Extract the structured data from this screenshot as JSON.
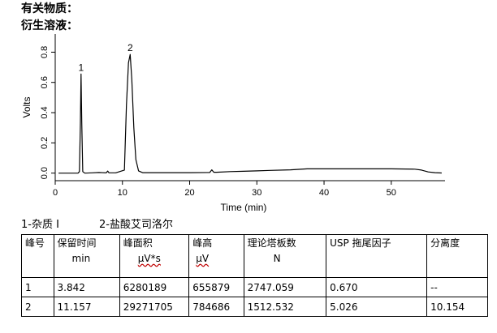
{
  "header": {
    "line1": "有关物质：",
    "line2": "衍生溶液："
  },
  "chart_data": {
    "type": "line",
    "title": "",
    "xlabel": "Time (min)",
    "ylabel": "Volts",
    "xlim": [
      0,
      58
    ],
    "ylim": [
      -0.05,
      0.92
    ],
    "xticks": [
      0,
      10,
      20,
      30,
      40,
      50
    ],
    "yticks": [
      0.0,
      0.2,
      0.4,
      0.6,
      0.8
    ],
    "xtick_labels": [
      "0",
      "10",
      "20",
      "30",
      "40",
      "50"
    ],
    "ytick_labels": [
      "0.0",
      "0.2",
      "0.4",
      "0.6",
      "0.8"
    ],
    "grid": false,
    "line_color": "#000000",
    "series": [
      {
        "x": [
          0.5,
          2.0,
          3.4,
          3.6,
          3.75,
          3.842,
          3.95,
          4.1,
          4.4,
          5.5,
          6.5,
          7.6,
          7.8,
          8.0,
          9.0,
          10.3,
          10.6,
          10.9,
          11.157,
          11.4,
          11.7,
          12.0,
          12.4,
          13.0,
          15.0,
          20.0,
          23.0,
          23.3,
          23.6,
          24.0,
          26.0,
          28.0,
          30.0,
          32.0,
          35.0,
          37.5,
          40.0,
          45.0,
          50.0,
          53.5,
          54.5,
          55.5,
          56.5,
          57.5
        ],
        "y": [
          0.0,
          0.0,
          0.0,
          0.01,
          0.33,
          0.655879,
          0.33,
          0.01,
          0.0,
          0.002,
          0.004,
          0.002,
          0.014,
          0.002,
          0.002,
          0.02,
          0.45,
          0.73,
          0.784686,
          0.62,
          0.3,
          0.09,
          0.015,
          0.003,
          0.003,
          0.003,
          0.004,
          0.022,
          0.006,
          0.006,
          0.01,
          0.012,
          0.015,
          0.018,
          0.022,
          0.028,
          0.028,
          0.028,
          0.028,
          0.026,
          0.02,
          0.008,
          0.003,
          0.001
        ]
      }
    ],
    "annotations": [
      {
        "label": "1",
        "x": 3.842,
        "y": 0.655879
      },
      {
        "label": "2",
        "x": 11.157,
        "y": 0.784686
      }
    ]
  },
  "peak_labels": {
    "p1": "1-杂质 I",
    "p2": "2-盐酸艾司洛尔"
  },
  "table": {
    "headers": [
      {
        "top": "峰号",
        "sub": ""
      },
      {
        "top": "保留时间",
        "sub": "min"
      },
      {
        "top": "峰面积",
        "sub": "μV*s"
      },
      {
        "top": "峰高",
        "sub": "μV"
      },
      {
        "top": "理论塔板数",
        "sub": "N"
      },
      {
        "top": "USP 拖尾因子",
        "sub": ""
      },
      {
        "top": "分离度",
        "sub": ""
      }
    ],
    "rows": [
      [
        "1",
        "3.842",
        "6280189",
        "655879",
        "2747.059",
        "0.670",
        "--"
      ],
      [
        "2",
        "11.157",
        "29271705",
        "784686",
        "1512.532",
        "5.026",
        "10.154"
      ]
    ]
  }
}
